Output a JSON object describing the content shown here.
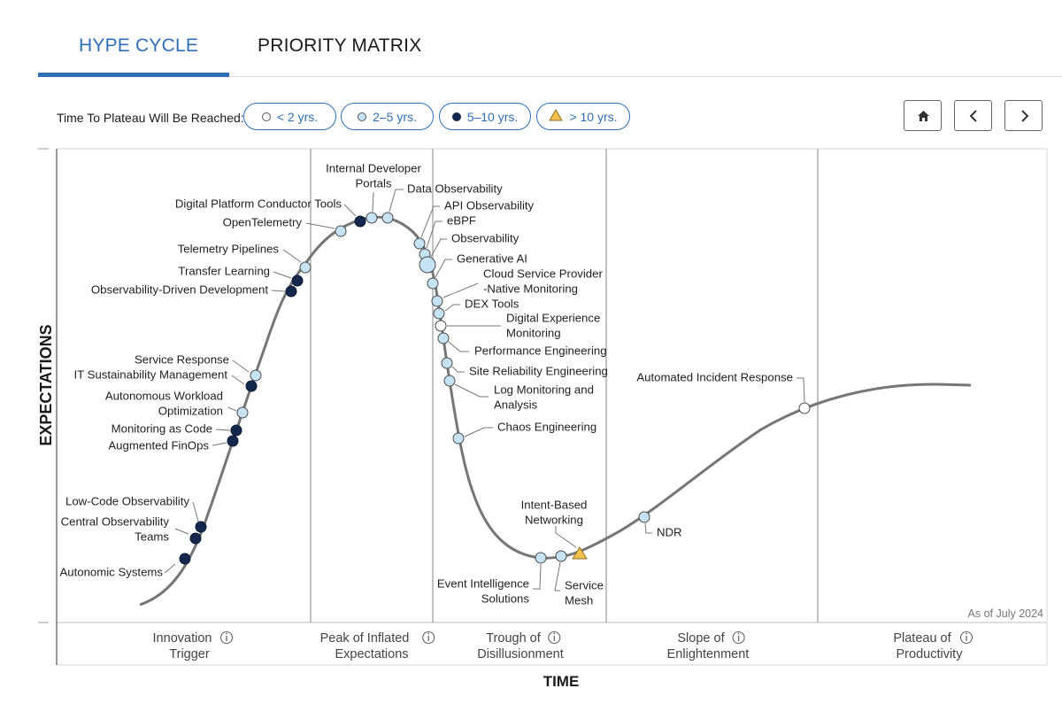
{
  "tabs": {
    "hype": "HYPE CYCLE",
    "priority": "PRIORITY MATRIX"
  },
  "legend": {
    "label": "Time To Plateau Will Be Reached:",
    "items": [
      {
        "label": "< 2 yrs.",
        "marker": "white-circle"
      },
      {
        "label": "2–5 yrs.",
        "marker": "light-blue-circle"
      },
      {
        "label": "5–10 yrs.",
        "marker": "navy-circle"
      },
      {
        "label": "> 10 yrs.",
        "marker": "yellow-triangle"
      }
    ]
  },
  "nav": {
    "home": "home-icon",
    "prev": "chevron-left-icon",
    "next": "chevron-right-icon"
  },
  "colors": {
    "accent": "#2f6fb5",
    "white": "#ffffff",
    "light_blue": "#c5e3f5",
    "navy": "#14284d",
    "yellow": "#f2c14e",
    "curve": "#767676"
  },
  "chart_data": {
    "type": "hype-cycle",
    "ylabel": "EXPECTATIONS",
    "xlabel": "TIME",
    "as_of": "As of July 2024",
    "phases": [
      [
        "Innovation",
        "Trigger"
      ],
      [
        "Peak of Inflated",
        "Expectations"
      ],
      [
        "Trough of",
        "Disillusionment"
      ],
      [
        "Slope of",
        "Enlightenment"
      ],
      [
        "Plateau of",
        "Productivity"
      ]
    ],
    "technologies": [
      {
        "name": [
          "Autonomic Systems"
        ],
        "phase": "Innovation Trigger",
        "plateau": "5–10 yrs."
      },
      {
        "name": [
          "Central Observability",
          "Teams"
        ],
        "phase": "Innovation Trigger",
        "plateau": "5–10 yrs."
      },
      {
        "name": [
          "Low-Code Observability"
        ],
        "phase": "Innovation Trigger",
        "plateau": "5–10 yrs."
      },
      {
        "name": [
          "Augmented FinOps"
        ],
        "phase": "Innovation Trigger",
        "plateau": "5–10 yrs."
      },
      {
        "name": [
          "Monitoring as Code"
        ],
        "phase": "Innovation Trigger",
        "plateau": "5–10 yrs."
      },
      {
        "name": [
          "Autonomous Workload",
          "Optimization"
        ],
        "phase": "Innovation Trigger",
        "plateau": "2–5 yrs."
      },
      {
        "name": [
          "IT Sustainability Management"
        ],
        "phase": "Innovation Trigger",
        "plateau": "5–10 yrs."
      },
      {
        "name": [
          "Service Response"
        ],
        "phase": "Innovation Trigger",
        "plateau": "2–5 yrs."
      },
      {
        "name": [
          "Observability-Driven Development"
        ],
        "phase": "Innovation Trigger",
        "plateau": "5–10 yrs."
      },
      {
        "name": [
          "Transfer Learning"
        ],
        "phase": "Innovation Trigger",
        "plateau": "5–10 yrs."
      },
      {
        "name": [
          "Telemetry Pipelines"
        ],
        "phase": "Innovation Trigger",
        "plateau": "2–5 yrs."
      },
      {
        "name": [
          "OpenTelemetry"
        ],
        "phase": "Peak of Inflated Expectations",
        "plateau": "2–5 yrs."
      },
      {
        "name": [
          "Digital Platform Conductor Tools"
        ],
        "phase": "Peak of Inflated Expectations",
        "plateau": "5–10 yrs."
      },
      {
        "name": [
          "Internal Developer",
          "Portals"
        ],
        "phase": "Peak of Inflated Expectations",
        "plateau": "2–5 yrs."
      },
      {
        "name": [
          "Data Observability"
        ],
        "phase": "Peak of Inflated Expectations",
        "plateau": "2–5 yrs."
      },
      {
        "name": [
          "API Observability"
        ],
        "phase": "Peak of Inflated Expectations",
        "plateau": "2–5 yrs."
      },
      {
        "name": [
          "eBPF"
        ],
        "phase": "Peak of Inflated Expectations",
        "plateau": "2–5 yrs."
      },
      {
        "name": [
          "Observability"
        ],
        "phase": "Peak of Inflated Expectations",
        "plateau": "2–5 yrs."
      },
      {
        "name": [
          "Generative AI"
        ],
        "phase": "Peak of Inflated Expectations",
        "plateau": "2–5 yrs."
      },
      {
        "name": [
          "Cloud Service Provider",
          "-Native Monitoring"
        ],
        "phase": "Trough of Disillusionment",
        "plateau": "2–5 yrs."
      },
      {
        "name": [
          "DEX Tools"
        ],
        "phase": "Trough of Disillusionment",
        "plateau": "2–5 yrs."
      },
      {
        "name": [
          "Digital Experience",
          "Monitoring"
        ],
        "phase": "Trough of Disillusionment",
        "plateau": "< 2 yrs."
      },
      {
        "name": [
          "Performance Engineering"
        ],
        "phase": "Trough of Disillusionment",
        "plateau": "2–5 yrs."
      },
      {
        "name": [
          "Site Reliability Engineering"
        ],
        "phase": "Trough of Disillusionment",
        "plateau": "2–5 yrs."
      },
      {
        "name": [
          "Log Monitoring and",
          "Analysis"
        ],
        "phase": "Trough of Disillusionment",
        "plateau": "2–5 yrs."
      },
      {
        "name": [
          "Chaos Engineering"
        ],
        "phase": "Trough of Disillusionment",
        "plateau": "2–5 yrs."
      },
      {
        "name": [
          "Event Intelligence",
          "Solutions"
        ],
        "phase": "Trough of Disillusionment",
        "plateau": "2–5 yrs."
      },
      {
        "name": [
          "Service",
          "Mesh"
        ],
        "phase": "Trough of Disillusionment",
        "plateau": "2–5 yrs."
      },
      {
        "name": [
          "Intent-Based",
          "Networking"
        ],
        "phase": "Trough of Disillusionment",
        "plateau": "> 10 yrs."
      },
      {
        "name": [
          "NDR"
        ],
        "phase": "Slope of Enlightenment",
        "plateau": "2–5 yrs."
      },
      {
        "name": [
          "Automated Incident Response"
        ],
        "phase": "Slope of Enlightenment",
        "plateau": "< 2 yrs."
      }
    ]
  }
}
